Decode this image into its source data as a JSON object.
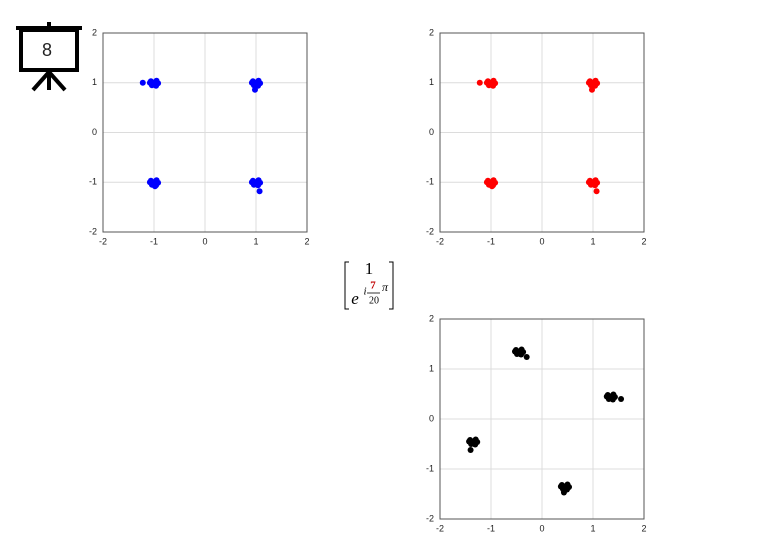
{
  "slide_number": "8",
  "formula": {
    "top": "1",
    "base": "e",
    "exponent_prefix": "i",
    "numerator": "7",
    "denominator": "20",
    "pi": "π"
  },
  "chart_data": [
    {
      "type": "scatter",
      "color": "#0000ff",
      "grid": true,
      "xlim": [
        -2,
        2
      ],
      "ylim": [
        -2,
        2
      ],
      "xticks": [
        -2,
        -1,
        0,
        1,
        2
      ],
      "yticks": [
        -2,
        -1,
        0,
        1,
        2
      ],
      "x": [
        1.0,
        1.05,
        0.94,
        1.04,
        0.96,
        1.08,
        0.92,
        0.98,
        -1.0,
        -0.95,
        -1.06,
        -0.96,
        -1.04,
        -0.92,
        -1.08,
        -1.22,
        -1.0,
        -0.95,
        -1.06,
        -0.96,
        -1.04,
        -0.92,
        -1.08,
        -0.98,
        1.0,
        1.05,
        0.94,
        1.04,
        0.96,
        1.08,
        0.92,
        1.07
      ],
      "y": [
        1.0,
        1.04,
        1.03,
        0.94,
        0.95,
        0.99,
        1.0,
        0.86,
        1.0,
        1.04,
        1.03,
        0.94,
        0.95,
        0.99,
        1.0,
        1.0,
        -1.0,
        -0.96,
        -0.97,
        -1.06,
        -1.05,
        -1.01,
        -1.0,
        -1.08,
        -1.0,
        -0.96,
        -0.97,
        -1.06,
        -1.05,
        -1.01,
        -1.0,
        -1.18
      ]
    },
    {
      "type": "scatter",
      "color": "#ff0000",
      "grid": true,
      "xlim": [
        -2,
        2
      ],
      "ylim": [
        -2,
        2
      ],
      "xticks": [
        -2,
        -1,
        0,
        1,
        2
      ],
      "yticks": [
        -2,
        -1,
        0,
        1,
        2
      ],
      "x": [
        1.0,
        1.05,
        0.94,
        1.04,
        0.96,
        1.08,
        0.92,
        0.98,
        -1.0,
        -0.95,
        -1.06,
        -0.96,
        -1.04,
        -0.92,
        -1.08,
        -1.22,
        -1.0,
        -0.95,
        -1.06,
        -0.96,
        -1.04,
        -0.92,
        -1.08,
        -0.98,
        1.0,
        1.05,
        0.94,
        1.04,
        0.96,
        1.08,
        0.92,
        1.07
      ],
      "y": [
        1.0,
        1.04,
        1.03,
        0.94,
        0.95,
        0.99,
        1.0,
        0.86,
        1.0,
        1.04,
        1.03,
        0.94,
        0.95,
        0.99,
        1.0,
        1.0,
        -1.0,
        -0.96,
        -0.97,
        -1.06,
        -1.05,
        -1.01,
        -1.0,
        -1.08,
        -1.0,
        -0.96,
        -0.97,
        -1.06,
        -1.05,
        -1.01,
        -1.0,
        -1.18
      ]
    },
    {
      "type": "scatter",
      "color": "#000000",
      "grid": true,
      "xlim": [
        -2,
        2
      ],
      "ylim": [
        -2,
        2
      ],
      "xticks": [
        -2,
        -1,
        0,
        1,
        2
      ],
      "yticks": [
        -2,
        -1,
        0,
        1,
        2
      ],
      "x": [
        -0.45,
        -0.4,
        -0.51,
        -0.41,
        -0.49,
        -0.37,
        -0.53,
        -0.3,
        1.35,
        1.4,
        1.29,
        1.39,
        1.31,
        1.43,
        1.27,
        1.55,
        0.45,
        0.5,
        0.39,
        0.49,
        0.41,
        0.53,
        0.37,
        0.43,
        -1.35,
        -1.3,
        -1.41,
        -1.31,
        -1.39,
        -1.27,
        -1.43,
        -1.4
      ],
      "y": [
        1.35,
        1.39,
        1.38,
        1.29,
        1.3,
        1.34,
        1.35,
        1.24,
        0.45,
        0.49,
        0.48,
        0.39,
        0.4,
        0.44,
        0.45,
        0.4,
        -1.35,
        -1.31,
        -1.32,
        -1.41,
        -1.4,
        -1.36,
        -1.35,
        -1.47,
        -0.45,
        -0.41,
        -0.42,
        -0.51,
        -0.5,
        -0.46,
        -0.45,
        -0.62
      ]
    }
  ]
}
